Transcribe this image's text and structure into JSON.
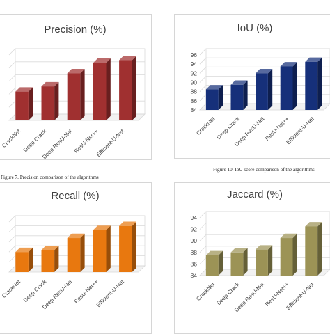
{
  "captions": {
    "fig7": "Figure 7. Precision comparison of the algorithms",
    "fig10": "Figure 10. IoU score comparison of the algorithms"
  },
  "chart_data": [
    {
      "type": "bar",
      "title": "Precision (%)",
      "categories": [
        "CrackNet",
        "Deep Crack",
        "Deep ResU-Net",
        "ResU-Net++",
        "Efficient-U-Net"
      ],
      "values": [
        81,
        83,
        88,
        92,
        93
      ],
      "ylim": [
        70,
        95
      ],
      "grid": true,
      "color": "#a03030"
    },
    {
      "type": "bar",
      "title": "IoU (%)",
      "categories": [
        "CrackNet",
        "Deep Crack",
        "Deep ResU-Net",
        "ResU-Net++",
        "Efficient-U-Net"
      ],
      "values": [
        88.5,
        89.5,
        92,
        93.5,
        94.5
      ],
      "yticks": [
        84,
        86,
        88,
        90,
        92,
        94,
        96
      ],
      "ylim": [
        84,
        96
      ],
      "grid": true,
      "color": "#16307a"
    },
    {
      "type": "bar",
      "title": "Recall (%)",
      "categories": [
        "CrackNet",
        "Deep Crack",
        "Deep ResU-Net",
        "ResU-Net++",
        "Efficient-U-Net"
      ],
      "values": [
        80,
        81,
        87,
        91,
        93
      ],
      "ylim": [
        70,
        95
      ],
      "grid": true,
      "color": "#e8780f"
    },
    {
      "type": "bar",
      "title": "Jaccard (%)",
      "categories": [
        "CrackNet",
        "Deep Crack",
        "Deep ResU-Net",
        "ResU-Net++",
        "Efficient-U-Net"
      ],
      "values": [
        87.5,
        88,
        88.5,
        90.5,
        92.5
      ],
      "yticks": [
        84,
        86,
        88,
        90,
        92,
        94
      ],
      "ylim": [
        84,
        94
      ],
      "grid": true,
      "color": "#9c9356"
    }
  ]
}
